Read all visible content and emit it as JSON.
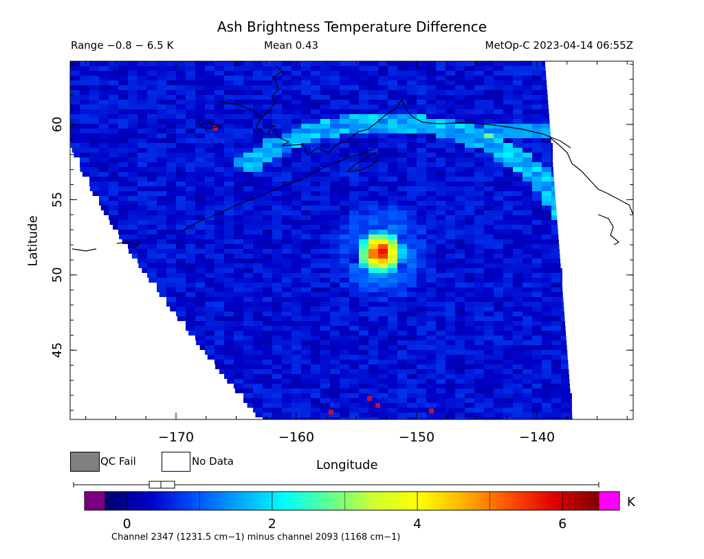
{
  "title": "Ash Brightness Temperature Difference",
  "header": {
    "range": "Range −0.8 − 6.5 K",
    "mean": "Mean 0.43",
    "satellite_time": "MetOp-C 2023-04-14 06:55Z"
  },
  "axes": {
    "xlabel": "Longitude",
    "ylabel": "Latitude",
    "x_ticks": [
      "−170",
      "−160",
      "−150",
      "−140"
    ],
    "x_tick_values": [
      -170,
      -160,
      -150,
      -140
    ],
    "y_ticks": [
      "45",
      "50",
      "55",
      "60"
    ],
    "y_tick_values": [
      45,
      50,
      55,
      60
    ],
    "xlim": [
      -178.8,
      -132.0
    ],
    "ylim": [
      40.4,
      64.2
    ]
  },
  "legend": {
    "qc_fail": "QC Fail",
    "no_data": "No Data"
  },
  "colorbar": {
    "unit": "K",
    "ticks": [
      "0",
      "2",
      "4",
      "6"
    ],
    "tick_values": [
      0,
      2,
      4,
      6
    ],
    "range": [
      -0.3,
      6.5
    ],
    "under_color": "#7a0080",
    "over_color": "#ff00ff",
    "colors": [
      "#000070",
      "#0000c8",
      "#0050ff",
      "#00a8ff",
      "#00ffff",
      "#60ff90",
      "#d0ff30",
      "#ffff00",
      "#ffb000",
      "#ff5000",
      "#e00000",
      "#800000"
    ],
    "box_whisker": {
      "min": -0.8,
      "q1": 0.25,
      "median": 0.43,
      "q3": 0.6,
      "max": 6.5
    }
  },
  "channel_note": "Channel 2347 (1231.5 cm−1) minus channel 2093 (1168 cm−1)",
  "colors": {
    "swath_base": "#1a3adf",
    "no_data": "#ffffff",
    "qc_fail": "#808080",
    "coastline": "#000000"
  },
  "chart_data": {
    "type": "heatmap",
    "title": "Ash Brightness Temperature Difference",
    "xlabel": "Longitude",
    "ylabel": "Latitude",
    "xlim": [
      -178.8,
      -132.0
    ],
    "ylim": [
      40.4,
      64.2
    ],
    "units": "K",
    "range": [
      -0.8,
      6.5
    ],
    "mean": 0.43,
    "features": [
      {
        "name": "ash plume core",
        "lon": -152.5,
        "lat": 51.7,
        "value": 6.5
      },
      {
        "name": "arc band",
        "value": 1.8
      }
    ]
  }
}
